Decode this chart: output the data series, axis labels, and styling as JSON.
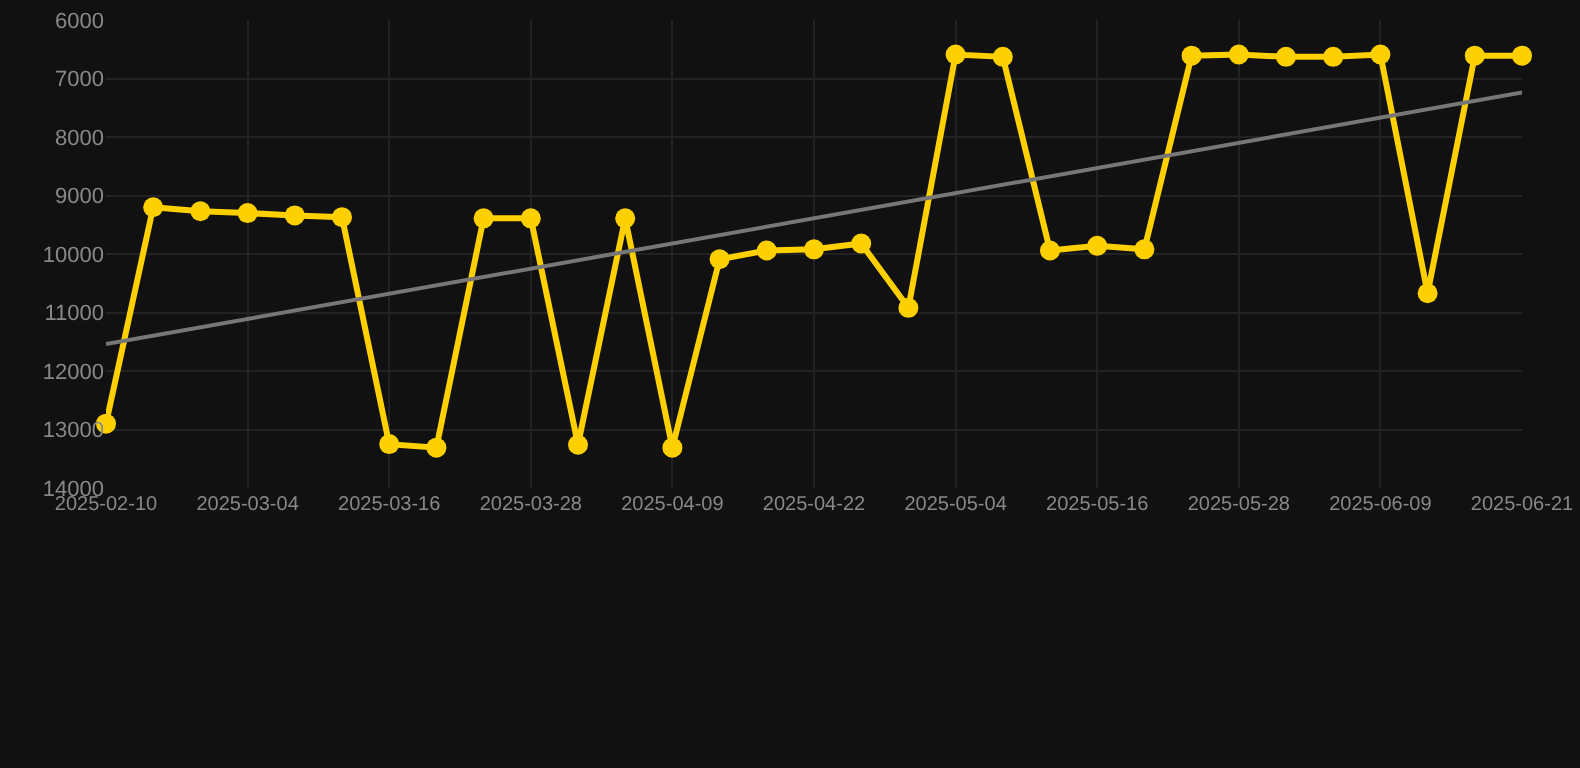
{
  "chart_data": {
    "type": "line",
    "categories": [
      "2025-02-10",
      null,
      null,
      "2025-03-04",
      null,
      null,
      "2025-03-16",
      null,
      null,
      "2025-03-28",
      null,
      null,
      "2025-04-09",
      null,
      null,
      "2025-04-22",
      null,
      null,
      "2025-05-04",
      null,
      null,
      "2025-05-16",
      null,
      null,
      "2025-05-28",
      null,
      null,
      "2025-06-09",
      null,
      null,
      "2025-06-21"
    ],
    "series": [
      {
        "color": "#ffd000",
        "marker": "circle",
        "values": [
          12900,
          9200,
          9270,
          9300,
          9340,
          9370,
          13250,
          13310,
          9390,
          9390,
          13260,
          9390,
          13310,
          10090,
          9940,
          9920,
          9820,
          10920,
          6590,
          6630,
          9940,
          9860,
          9920,
          6610,
          6590,
          6630,
          6630,
          6590,
          10670,
          6610,
          6610
        ]
      },
      {
        "color": "#777777",
        "marker": "none",
        "values": [
          11540,
          null,
          null,
          null,
          null,
          null,
          null,
          null,
          null,
          null,
          null,
          null,
          null,
          null,
          null,
          null,
          null,
          null,
          null,
          null,
          null,
          null,
          null,
          null,
          null,
          null,
          null,
          null,
          null,
          null,
          7240
        ]
      }
    ],
    "ylim": [
      14000,
      6000
    ],
    "yticks": [
      6000,
      7000,
      8000,
      9000,
      10000,
      11000,
      12000,
      13000,
      14000
    ],
    "grid": true,
    "line_style": "solid"
  }
}
